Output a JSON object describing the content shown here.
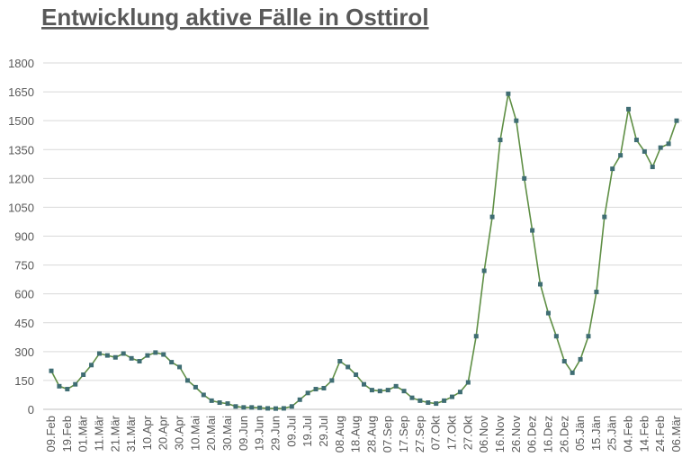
{
  "chart_data": {
    "type": "line",
    "title": "Entwicklung aktive Fälle in Osttirol",
    "categories": [
      "09.Feb",
      null,
      "19.Feb",
      null,
      "01.Mär",
      null,
      "11.Mär",
      null,
      "21.Mär",
      null,
      "31.Mär",
      null,
      "10.Apr",
      null,
      "20.Apr",
      null,
      "30.Apr",
      null,
      "10.Mai",
      null,
      "20.Mai",
      null,
      "30.Mai",
      null,
      "09.Jun",
      null,
      "19.Jun",
      null,
      "29.Jun",
      null,
      "09.Jul",
      null,
      "19.Jul",
      null,
      "29.Jul",
      null,
      "08.Aug",
      null,
      "18.Aug",
      null,
      "28.Aug",
      null,
      "07.Sep",
      null,
      "17.Sep",
      null,
      "27.Sep",
      null,
      "07.Okt",
      null,
      "17.Okt",
      null,
      "27.Okt",
      null,
      "06.Nov",
      null,
      "16.Nov",
      null,
      "26.Nov",
      null,
      "06.Dez",
      null,
      "16.Dez",
      null,
      "26.Dez",
      null,
      "05.Jän",
      null,
      "15.Jän",
      null,
      "25.Jän",
      null,
      "04.Feb",
      null,
      "14.Feb",
      null,
      "24.Feb",
      null,
      "06.Mär"
    ],
    "values": [
      200,
      120,
      105,
      130,
      180,
      230,
      290,
      280,
      270,
      290,
      265,
      250,
      280,
      295,
      285,
      245,
      220,
      150,
      115,
      75,
      45,
      35,
      30,
      15,
      10,
      10,
      8,
      5,
      4,
      5,
      15,
      50,
      85,
      105,
      110,
      150,
      250,
      220,
      180,
      130,
      100,
      95,
      100,
      120,
      95,
      60,
      45,
      35,
      30,
      45,
      65,
      90,
      140,
      380,
      720,
      1000,
      1400,
      1640,
      1500,
      1200,
      930,
      650,
      500,
      380,
      250,
      190,
      260,
      380,
      610,
      1000,
      1250,
      1320,
      1560,
      1400,
      1340,
      1260,
      1360,
      1380,
      1500
    ],
    "line_color": "#5f8f45",
    "marker_color": "#3f6d73",
    "ylim": [
      0,
      1800
    ],
    "yticks": [
      0,
      150,
      300,
      450,
      600,
      750,
      900,
      1050,
      1200,
      1350,
      1500,
      1650,
      1800
    ],
    "grid": true
  }
}
